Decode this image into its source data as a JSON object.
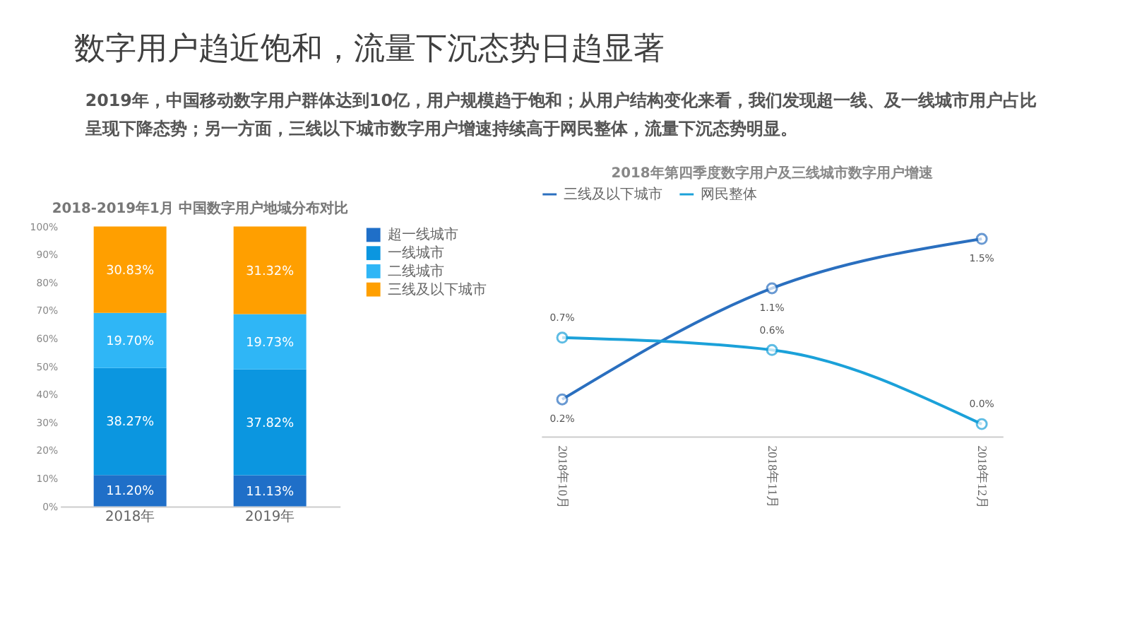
{
  "chart_data": [
    {
      "type": "bar",
      "stacked": true,
      "title": "2018-2019年1月 中国数字用户地域分布对比",
      "annotations": [
        "数字用户趋近饱和，流量下沉态势日趋显著",
        "2019年，中国移动数字用户群体达到10亿，用户规模趋于饱和；从用户结构变化来看，我们发现超一线、及一线城市用户占比呈现下降态势；另一方面，三线以下城市数字用户增速持续高于网民整体，流量下沉态势明显。"
      ],
      "categories": [
        "2018年",
        "2019年"
      ],
      "series": [
        {
          "name": "超一线城市",
          "color": "#1f6fc8",
          "values": [
            11.2,
            11.13
          ],
          "value_labels": [
            "11.20%",
            "11.13%"
          ]
        },
        {
          "name": "一线城市",
          "color": "#0b96e0",
          "values": [
            38.27,
            37.82
          ],
          "value_labels": [
            "38.27%",
            "37.82%"
          ]
        },
        {
          "name": "二线城市",
          "color": "#2fb6f6",
          "values": [
            19.7,
            19.73
          ],
          "value_labels": [
            "19.70%",
            "19.73%"
          ]
        },
        {
          "name": "三线及以下城市",
          "color": "#ff9f00",
          "values": [
            30.83,
            31.32
          ],
          "value_labels": [
            "30.83%",
            "31.32%"
          ]
        }
      ],
      "ylim": [
        0,
        100
      ],
      "yticks": [
        {
          "value": 0,
          "label": "0%"
        },
        {
          "value": 10,
          "label": "10%"
        },
        {
          "value": 20,
          "label": "20%"
        },
        {
          "value": 30,
          "label": "30%"
        },
        {
          "value": 40,
          "label": "40%"
        },
        {
          "value": 50,
          "label": "50%"
        },
        {
          "value": 60,
          "label": "60%"
        },
        {
          "value": 70,
          "label": "70%"
        },
        {
          "value": 80,
          "label": "80%"
        },
        {
          "value": 90,
          "label": "90%"
        },
        {
          "value": 100,
          "label": "100%"
        }
      ],
      "grid": false,
      "legend": "right"
    },
    {
      "type": "line",
      "title": "2018年第四季度数字用户及三线城市数字用户增速",
      "categories": [
        "2018年10月",
        "2018年11月",
        "2018年12月"
      ],
      "series": [
        {
          "name": "三线及以下城市",
          "color": "#2a6fbf",
          "values": [
            0.2,
            1.1,
            1.5
          ],
          "value_labels": [
            "0.2%",
            "1.1%",
            "1.5%"
          ]
        },
        {
          "name": "网民整体",
          "color": "#1ba1d9",
          "values": [
            0.7,
            0.6,
            0.0
          ],
          "value_labels": [
            "0.7%",
            "0.6%",
            "0.0%"
          ]
        }
      ],
      "marker": "circle",
      "line_style": "solid",
      "grid": false,
      "legend": "top",
      "tick_labels": "x"
    }
  ]
}
